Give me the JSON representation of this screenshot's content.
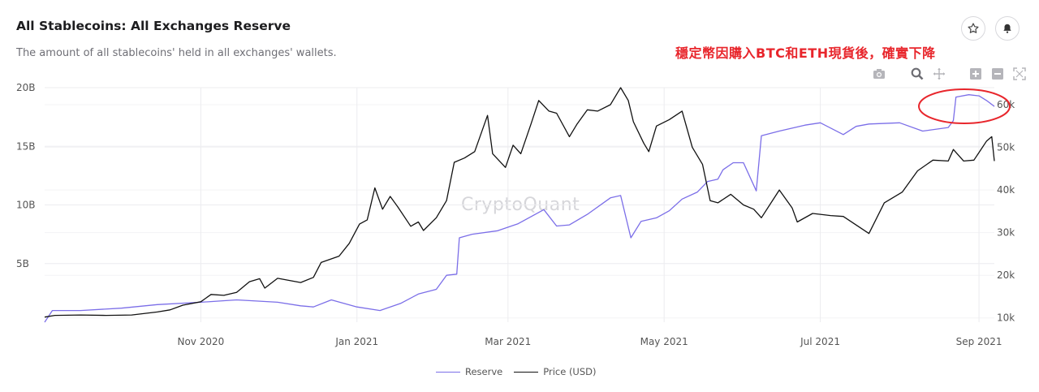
{
  "header": {
    "title": "All Stablecoins: All Exchanges Reserve",
    "subtitle": "The amount of all stablecoins' held in all exchanges' wallets.",
    "annotation": "穩定幣因購入BTC和ETH現貨後，確實下降"
  },
  "watermark": "CryptoQuant",
  "colors": {
    "reserve": "#7b6ee8",
    "price": "#111111",
    "annotation": "#e8262c",
    "grid": "#ececef"
  },
  "buttons": {
    "favorite_icon": "star-icon",
    "alert_icon": "bell-icon"
  },
  "toolbar_icons": [
    "camera-icon",
    "zoom-icon",
    "pan-icon",
    "zoom-in-icon",
    "zoom-out-icon",
    "autoscale-icon"
  ],
  "chart_data": {
    "type": "line",
    "x_range": [
      "2020-09-01",
      "2021-09-07"
    ],
    "x_ticks": [
      {
        "date": "2020-11-01",
        "label": "Nov 2020"
      },
      {
        "date": "2021-01-01",
        "label": "Jan 2021"
      },
      {
        "date": "2021-03-01",
        "label": "Mar 2021"
      },
      {
        "date": "2021-05-01",
        "label": "May 2021"
      },
      {
        "date": "2021-07-01",
        "label": "Jul 2021"
      },
      {
        "date": "2021-09-01",
        "label": "Sep 2021"
      }
    ],
    "y_left": {
      "range": [
        0,
        20000000000
      ],
      "ticks": [
        {
          "v": 5000000000,
          "label": "5B"
        },
        {
          "v": 10000000000,
          "label": "10B"
        },
        {
          "v": 15000000000,
          "label": "15B"
        },
        {
          "v": 20000000000,
          "label": "20B"
        }
      ]
    },
    "y_right": {
      "range": [
        9000,
        64000
      ],
      "ticks": [
        {
          "v": 10000,
          "label": "10k"
        },
        {
          "v": 20000,
          "label": "20k"
        },
        {
          "v": 30000,
          "label": "30k"
        },
        {
          "v": 40000,
          "label": "40k"
        },
        {
          "v": 50000,
          "label": "50k"
        },
        {
          "v": 60000,
          "label": "60k"
        }
      ]
    },
    "grid": true,
    "legend_position": "bottom-center",
    "series": [
      {
        "name": "Reserve",
        "axis": "left",
        "points": [
          [
            "2020-09-01",
            0.0
          ],
          [
            "2020-09-04",
            1.0
          ],
          [
            "2020-09-15",
            1.0
          ],
          [
            "2020-10-01",
            1.2
          ],
          [
            "2020-10-15",
            1.5
          ],
          [
            "2020-11-01",
            1.7
          ],
          [
            "2020-11-15",
            1.9
          ],
          [
            "2020-12-01",
            1.7
          ],
          [
            "2020-12-10",
            1.4
          ],
          [
            "2020-12-15",
            1.3
          ],
          [
            "2020-12-22",
            1.9
          ],
          [
            "2021-01-01",
            1.3
          ],
          [
            "2021-01-10",
            1.0
          ],
          [
            "2021-01-18",
            1.6
          ],
          [
            "2021-01-25",
            2.4
          ],
          [
            "2021-02-01",
            2.8
          ],
          [
            "2021-02-05",
            4.0
          ],
          [
            "2021-02-09",
            4.1
          ],
          [
            "2021-02-10",
            7.2
          ],
          [
            "2021-02-15",
            7.5
          ],
          [
            "2021-02-25",
            7.8
          ],
          [
            "2021-03-05",
            8.4
          ],
          [
            "2021-03-15",
            9.6
          ],
          [
            "2021-03-20",
            8.2
          ],
          [
            "2021-03-25",
            8.3
          ],
          [
            "2021-04-01",
            9.2
          ],
          [
            "2021-04-10",
            10.6
          ],
          [
            "2021-04-14",
            10.8
          ],
          [
            "2021-04-18",
            7.2
          ],
          [
            "2021-04-22",
            8.6
          ],
          [
            "2021-04-28",
            8.9
          ],
          [
            "2021-05-03",
            9.5
          ],
          [
            "2021-05-08",
            10.5
          ],
          [
            "2021-05-14",
            11.1
          ],
          [
            "2021-05-18",
            12.0
          ],
          [
            "2021-05-22",
            12.2
          ],
          [
            "2021-05-24",
            13.0
          ],
          [
            "2021-05-28",
            13.6
          ],
          [
            "2021-06-01",
            13.6
          ],
          [
            "2021-06-06",
            11.2
          ],
          [
            "2021-06-08",
            15.9
          ],
          [
            "2021-06-15",
            16.3
          ],
          [
            "2021-06-25",
            16.8
          ],
          [
            "2021-07-01",
            17.0
          ],
          [
            "2021-07-10",
            16.0
          ],
          [
            "2021-07-15",
            16.7
          ],
          [
            "2021-07-20",
            16.9
          ],
          [
            "2021-08-01",
            17.0
          ],
          [
            "2021-08-10",
            16.3
          ],
          [
            "2021-08-20",
            16.6
          ],
          [
            "2021-08-22",
            17.2
          ],
          [
            "2021-08-23",
            19.2
          ],
          [
            "2021-08-28",
            19.4
          ],
          [
            "2021-09-01",
            19.3
          ],
          [
            "2021-09-04",
            18.9
          ],
          [
            "2021-09-07",
            18.4
          ]
        ]
      },
      {
        "name": "Price (USD)",
        "axis": "right",
        "points": [
          [
            "2020-09-01",
            10200
          ],
          [
            "2020-09-05",
            10600
          ],
          [
            "2020-09-15",
            10700
          ],
          [
            "2020-09-25",
            10600
          ],
          [
            "2020-10-05",
            10700
          ],
          [
            "2020-10-15",
            11400
          ],
          [
            "2020-10-20",
            11900
          ],
          [
            "2020-10-25",
            13000
          ],
          [
            "2020-11-01",
            13800
          ],
          [
            "2020-11-05",
            15500
          ],
          [
            "2020-11-10",
            15300
          ],
          [
            "2020-11-15",
            16000
          ],
          [
            "2020-11-20",
            18500
          ],
          [
            "2020-11-24",
            19200
          ],
          [
            "2020-11-26",
            17000
          ],
          [
            "2020-12-01",
            19300
          ],
          [
            "2020-12-10",
            18300
          ],
          [
            "2020-12-15",
            19500
          ],
          [
            "2020-12-18",
            23000
          ],
          [
            "2020-12-25",
            24500
          ],
          [
            "2020-12-29",
            27500
          ],
          [
            "2021-01-02",
            32000
          ],
          [
            "2021-01-05",
            33000
          ],
          [
            "2021-01-08",
            40500
          ],
          [
            "2021-01-11",
            35500
          ],
          [
            "2021-01-14",
            38500
          ],
          [
            "2021-01-17",
            36000
          ],
          [
            "2021-01-22",
            31500
          ],
          [
            "2021-01-25",
            32500
          ],
          [
            "2021-01-27",
            30500
          ],
          [
            "2021-02-01",
            33500
          ],
          [
            "2021-02-05",
            37500
          ],
          [
            "2021-02-08",
            46500
          ],
          [
            "2021-02-12",
            47500
          ],
          [
            "2021-02-16",
            49000
          ],
          [
            "2021-02-21",
            57500
          ],
          [
            "2021-02-23",
            48500
          ],
          [
            "2021-02-28",
            45300
          ],
          [
            "2021-03-03",
            50500
          ],
          [
            "2021-03-06",
            48500
          ],
          [
            "2021-03-10",
            55500
          ],
          [
            "2021-03-13",
            61000
          ],
          [
            "2021-03-17",
            58500
          ],
          [
            "2021-03-20",
            58000
          ],
          [
            "2021-03-25",
            52500
          ],
          [
            "2021-03-28",
            55500
          ],
          [
            "2021-04-01",
            58800
          ],
          [
            "2021-04-05",
            58500
          ],
          [
            "2021-04-10",
            60000
          ],
          [
            "2021-04-14",
            64000
          ],
          [
            "2021-04-17",
            61000
          ],
          [
            "2021-04-19",
            56000
          ],
          [
            "2021-04-23",
            51000
          ],
          [
            "2021-04-25",
            49000
          ],
          [
            "2021-04-28",
            55000
          ],
          [
            "2021-05-03",
            56500
          ],
          [
            "2021-05-08",
            58500
          ],
          [
            "2021-05-12",
            50000
          ],
          [
            "2021-05-16",
            46000
          ],
          [
            "2021-05-19",
            37500
          ],
          [
            "2021-05-22",
            37000
          ],
          [
            "2021-05-27",
            39000
          ],
          [
            "2021-06-01",
            36500
          ],
          [
            "2021-06-05",
            35500
          ],
          [
            "2021-06-08",
            33500
          ],
          [
            "2021-06-15",
            40000
          ],
          [
            "2021-06-20",
            35800
          ],
          [
            "2021-06-22",
            32500
          ],
          [
            "2021-06-28",
            34500
          ],
          [
            "2021-07-05",
            34000
          ],
          [
            "2021-07-10",
            33800
          ],
          [
            "2021-07-15",
            31800
          ],
          [
            "2021-07-20",
            29800
          ],
          [
            "2021-07-26",
            37000
          ],
          [
            "2021-08-02",
            39500
          ],
          [
            "2021-08-08",
            44500
          ],
          [
            "2021-08-14",
            47000
          ],
          [
            "2021-08-20",
            46800
          ],
          [
            "2021-08-22",
            49500
          ],
          [
            "2021-08-26",
            46800
          ],
          [
            "2021-08-30",
            47000
          ],
          [
            "2021-09-01",
            48800
          ],
          [
            "2021-09-04",
            51500
          ],
          [
            "2021-09-06",
            52500
          ],
          [
            "2021-09-07",
            46800
          ]
        ]
      }
    ]
  }
}
